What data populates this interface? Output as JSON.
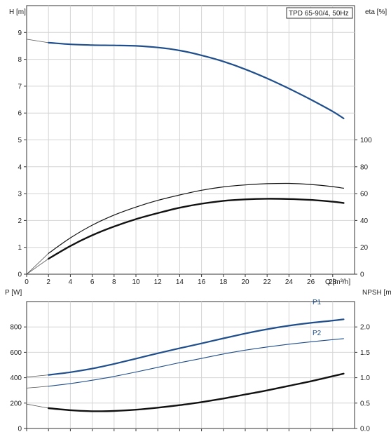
{
  "chart_data": [
    {
      "type": "line",
      "title": "TPD 65-90/4, 50Hz",
      "xlabel": "Q [m³/h]",
      "ylabel": "H [m]",
      "ylabel_right": "eta [%]",
      "xlim": [
        0,
        30
      ],
      "ylim": [
        0,
        10
      ],
      "ylim_right": [
        0,
        200
      ],
      "x_ticks": [
        "0",
        "2",
        "4",
        "6",
        "8",
        "10",
        "12",
        "14",
        "16",
        "18",
        "20",
        "22",
        "24",
        "26",
        "28"
      ],
      "y_ticks": [
        "0",
        "1",
        "2",
        "3",
        "4",
        "5",
        "6",
        "7",
        "8",
        "9"
      ],
      "y_ticks_right": [
        "0",
        "20",
        "40",
        "60",
        "80",
        "100"
      ],
      "grid": true,
      "series": [
        {
          "axis": "left",
          "color": "#1f4e8c",
          "width": 2.2,
          "x": [
            2,
            4,
            6,
            8,
            10,
            12,
            14,
            16,
            18,
            20,
            22,
            24,
            26,
            28,
            29
          ],
          "y": [
            8.62,
            8.56,
            8.53,
            8.52,
            8.5,
            8.44,
            8.33,
            8.15,
            7.92,
            7.63,
            7.29,
            6.91,
            6.5,
            6.06,
            5.8
          ]
        },
        {
          "axis": "right",
          "color": "#111111",
          "width": 1.2,
          "x": [
            2,
            4,
            6,
            8,
            10,
            12,
            14,
            16,
            18,
            20,
            22,
            24,
            26,
            28,
            29
          ],
          "y": [
            15.5,
            27,
            36.5,
            44,
            50,
            55,
            59,
            62.5,
            65,
            66.5,
            67.4,
            67.6,
            66.8,
            65.2,
            64
          ]
        },
        {
          "axis": "right",
          "color": "#111111",
          "width": 2.4,
          "x": [
            2,
            4,
            6,
            8,
            10,
            12,
            14,
            16,
            18,
            20,
            22,
            24,
            26,
            28,
            29
          ],
          "y": [
            11.5,
            21,
            29,
            35.5,
            41,
            45.5,
            49.5,
            52.5,
            54.6,
            55.7,
            56.2,
            56,
            55.3,
            54,
            53
          ]
        }
      ],
      "extrapolation": [
        {
          "axis": "left",
          "x": [
            0,
            2
          ],
          "y": [
            8.75,
            8.62
          ]
        },
        {
          "axis": "right",
          "x": [
            0,
            2
          ],
          "y": [
            0,
            15.5
          ]
        },
        {
          "axis": "right",
          "x": [
            0,
            2
          ],
          "y": [
            0,
            11.5
          ]
        }
      ]
    },
    {
      "type": "line",
      "xlabel": "",
      "ylabel": "P [W]",
      "ylabel_right": "NPSH [m]",
      "xlim": [
        0,
        30
      ],
      "ylim": [
        0,
        1000
      ],
      "ylim_right": [
        0,
        2.5
      ],
      "y_ticks": [
        "0",
        "200",
        "400",
        "600",
        "800"
      ],
      "y_ticks_right": [
        "0.0",
        "0.5",
        "1.0",
        "1.5",
        "2.0"
      ],
      "grid": true,
      "series": [
        {
          "name": "P1",
          "axis": "left",
          "color": "#1f4e8c",
          "width": 2.2,
          "x": [
            2,
            4,
            6,
            8,
            10,
            12,
            14,
            16,
            18,
            20,
            22,
            24,
            26,
            28,
            29
          ],
          "y": [
            422,
            443,
            472,
            509,
            550,
            592,
            632,
            670,
            710,
            748,
            782,
            810,
            832,
            850,
            860
          ]
        },
        {
          "name": "P2",
          "axis": "left",
          "color": "#1f4e8c",
          "width": 1.1,
          "x": [
            2,
            4,
            6,
            8,
            10,
            12,
            14,
            16,
            18,
            20,
            22,
            24,
            26,
            28,
            29
          ],
          "y": [
            333,
            354,
            380,
            410,
            445,
            482,
            518,
            552,
            587,
            617,
            642,
            664,
            683,
            700,
            708
          ]
        },
        {
          "axis": "right",
          "color": "#111111",
          "width": 2.4,
          "x": [
            2,
            4,
            6,
            8,
            10,
            12,
            14,
            16,
            18,
            20,
            22,
            24,
            26,
            28,
            29
          ],
          "y": [
            0.4,
            0.36,
            0.34,
            0.345,
            0.37,
            0.41,
            0.46,
            0.52,
            0.59,
            0.67,
            0.75,
            0.84,
            0.93,
            1.03,
            1.08
          ]
        }
      ],
      "extrapolation": [
        {
          "axis": "left",
          "x": [
            0,
            2
          ],
          "y": [
            405,
            422
          ]
        },
        {
          "axis": "left",
          "x": [
            0,
            2
          ],
          "y": [
            318,
            333
          ]
        },
        {
          "axis": "right",
          "x": [
            0,
            2
          ],
          "y": [
            0.48,
            0.4
          ]
        }
      ]
    }
  ]
}
